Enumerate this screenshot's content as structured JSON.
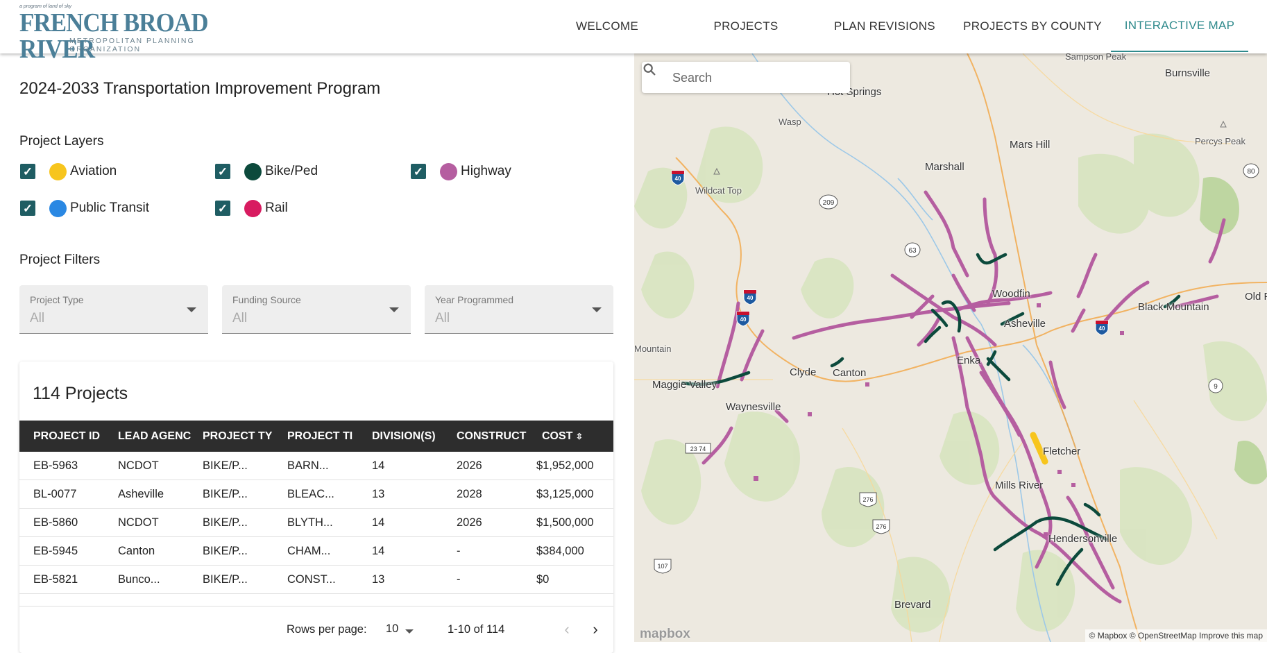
{
  "header": {
    "logo_tagline": "a program of land of sky",
    "logo_title": "FRENCH BROAD RIVER",
    "logo_subtitle": "METROPOLITAN PLANNING ORGANIZATION",
    "nav": [
      {
        "label": "WELCOME",
        "active": false
      },
      {
        "label": "PROJECTS",
        "active": false
      },
      {
        "label": "PLAN REVISIONS",
        "active": false
      },
      {
        "label": "PROJECTS BY COUNTY",
        "active": false
      },
      {
        "label": "INTERACTIVE MAP",
        "active": true
      }
    ]
  },
  "panel": {
    "title": "2024-2033 Transportation Improvement Program",
    "layers_heading": "Project Layers",
    "layers": [
      {
        "label": "Aviation",
        "color": "#f7c51d",
        "checked": true
      },
      {
        "label": "Bike/Ped",
        "color": "#0c4a3c",
        "checked": true
      },
      {
        "label": "Highway",
        "color": "#b55ea0",
        "checked": true
      },
      {
        "label": "Public Transit",
        "color": "#2a88e3",
        "checked": true
      },
      {
        "label": "Rail",
        "color": "#d81b60",
        "checked": true
      }
    ],
    "filters_heading": "Project Filters",
    "filters": [
      {
        "label": "Project Type",
        "value": "All"
      },
      {
        "label": "Funding Source",
        "value": "All"
      },
      {
        "label": "Year Programmed",
        "value": "All"
      }
    ]
  },
  "table": {
    "count_title": "114 Projects",
    "columns": [
      "PROJECT ID",
      "LEAD AGENC",
      "PROJECT TY",
      "PROJECT TI",
      "DIVISION(S)",
      "CONSTRUCT",
      "COST"
    ],
    "rows": [
      [
        "EB-5963",
        "NCDOT",
        "BIKE/P...",
        "BARN...",
        "14",
        "2026",
        "$1,952,000"
      ],
      [
        "BL-0077",
        "Asheville",
        "BIKE/P...",
        "BLEAC...",
        "13",
        "2028",
        "$3,125,000"
      ],
      [
        "EB-5860",
        "NCDOT",
        "BIKE/P...",
        "BLYTH...",
        "14",
        "2026",
        "$1,500,000"
      ],
      [
        "EB-5945",
        "Canton",
        "BIKE/P...",
        "CHAM...",
        "14",
        "-",
        "$384,000"
      ],
      [
        "EB-5821",
        "Bunco...",
        "BIKE/P...",
        "CONST...",
        "13",
        "-",
        "$0"
      ]
    ],
    "rows_per_page_label": "Rows per page:",
    "rows_per_page": "10",
    "page_range": "1-10 of 114"
  },
  "map": {
    "search_placeholder": "Search",
    "places": [
      "Sampson Peak",
      "Burnsville",
      "Hot Springs",
      "Wasp",
      "Mars Hill",
      "Percys Peak",
      "Marshall",
      "Wildcat Top",
      "Woodfin",
      "Black Mountain",
      "Old Fort",
      "Asheville",
      "Mountain",
      "Clyde",
      "Canton",
      "Enka",
      "Maggie Valley",
      "Waynesville",
      "Fletcher",
      "Mills River",
      "Hendersonville",
      "Brevard"
    ],
    "shields": [
      "40",
      "209",
      "63",
      "40",
      "40",
      "40",
      "80",
      "9",
      "23 74",
      "276",
      "276",
      "107"
    ],
    "logo": "mapbox",
    "attribution": "© Mapbox © OpenStreetMap Improve this map"
  }
}
